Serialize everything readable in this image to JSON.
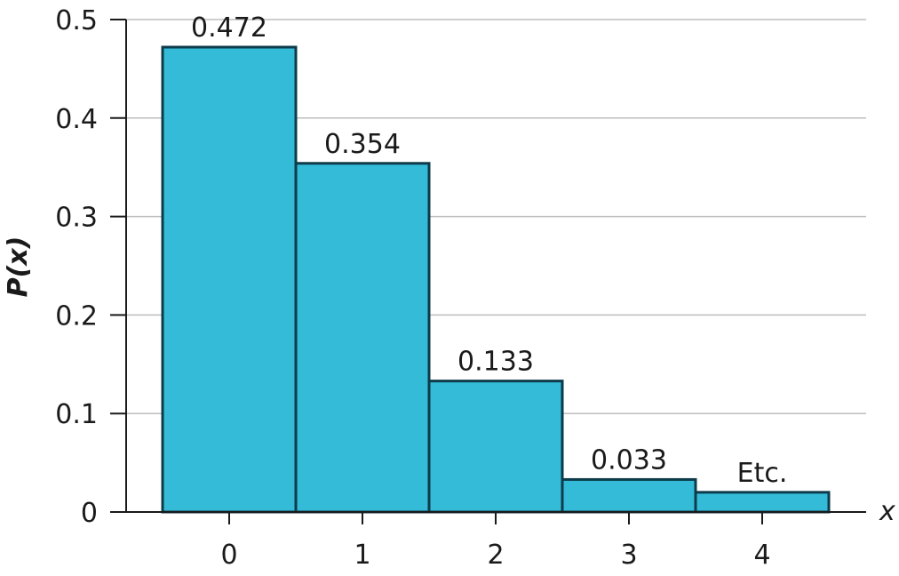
{
  "chart_data": {
    "type": "bar",
    "categories": [
      "0",
      "1",
      "2",
      "3",
      "4"
    ],
    "values": [
      0.472,
      0.354,
      0.133,
      0.033,
      0.02
    ],
    "data_labels": [
      "0.472",
      "0.354",
      "0.133",
      "0.033",
      "Etc."
    ],
    "title": "",
    "xlabel": "x",
    "ylabel": "P(x)",
    "ylim": [
      0,
      0.5
    ],
    "yticks": [
      0,
      0.1,
      0.2,
      0.3,
      0.4,
      0.5
    ],
    "ytick_labels": [
      "0",
      "0.1",
      "0.2",
      "0.3",
      "0.4",
      "0.5"
    ],
    "grid": true,
    "legend": "none",
    "colors": {
      "bar_fill": "#33bbd8",
      "bar_stroke": "#0d3b4a",
      "grid": "#bdbdbd",
      "axis": "#1a1a1a"
    }
  }
}
